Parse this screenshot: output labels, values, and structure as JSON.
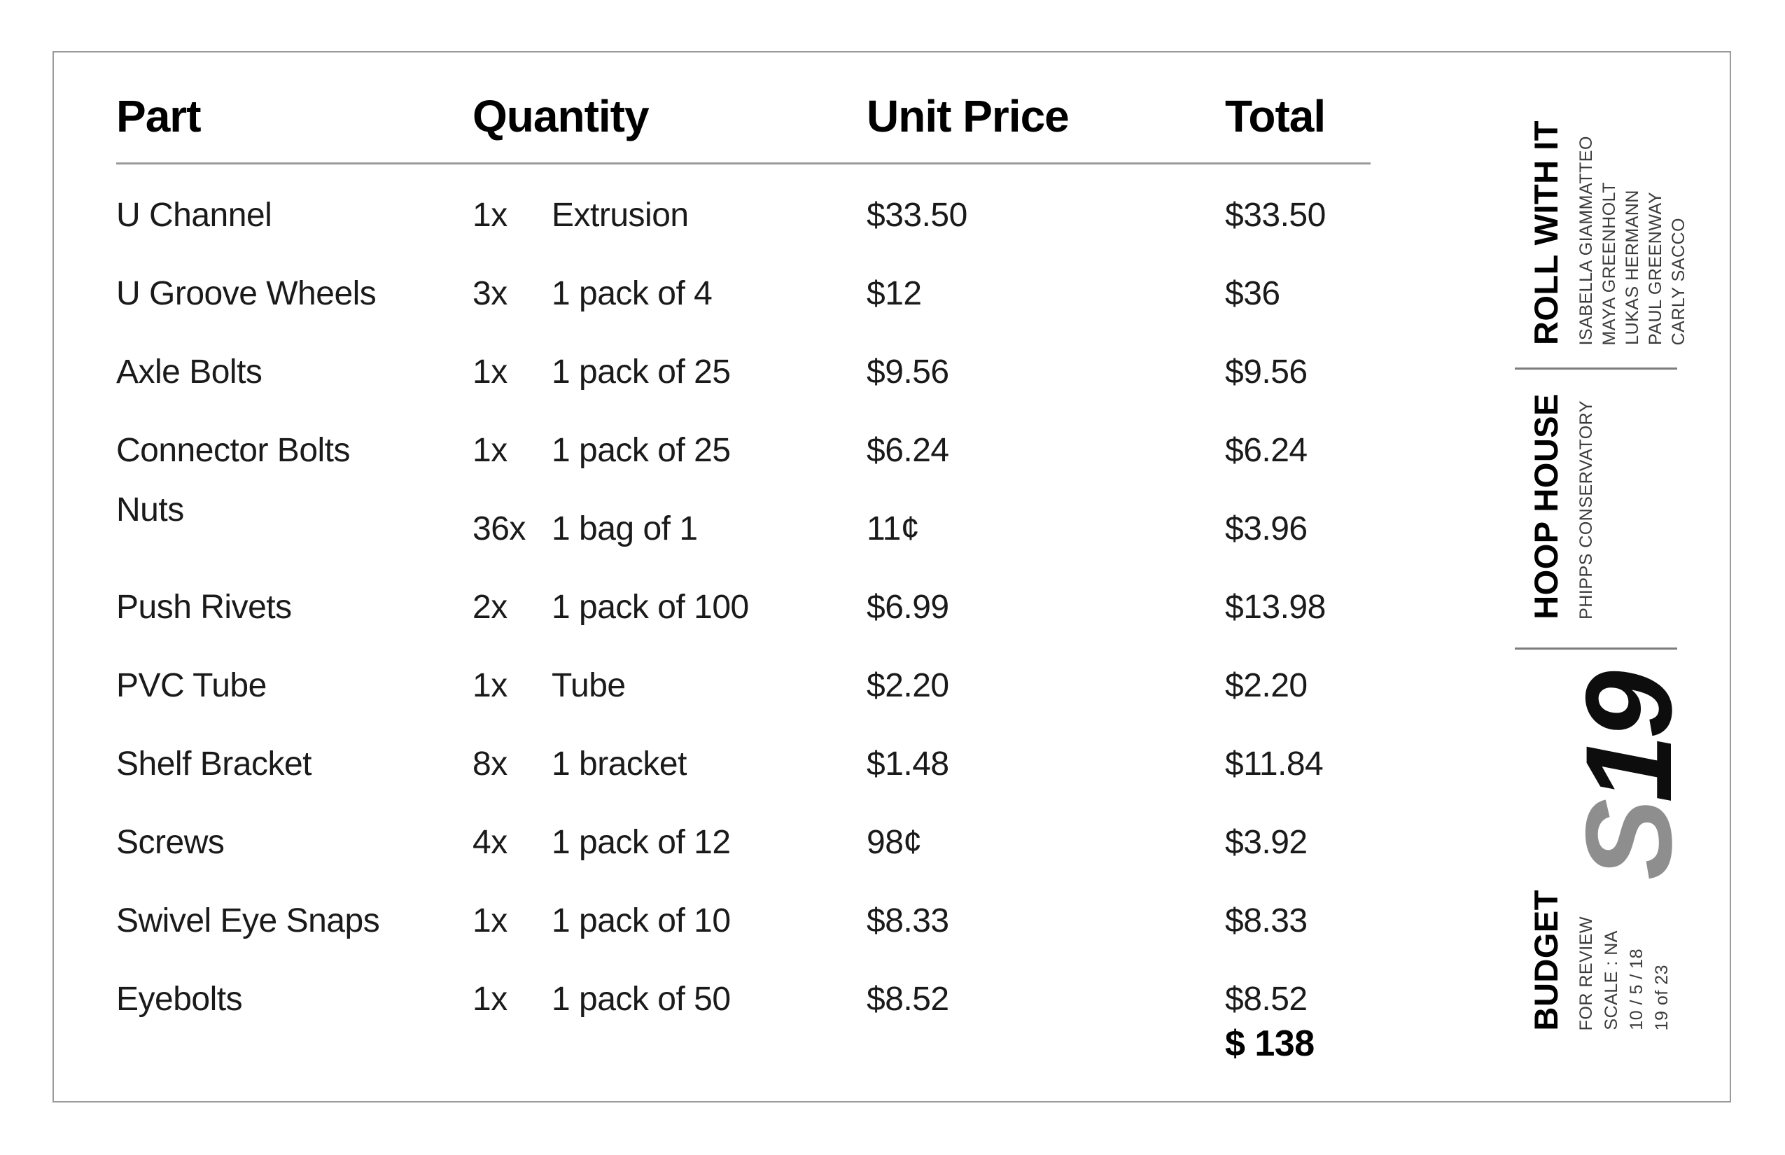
{
  "table": {
    "headers": {
      "part": "Part",
      "quantity": "Quantity",
      "unit_price": "Unit Price",
      "total": "Total"
    },
    "rows": [
      {
        "part": "U Channel",
        "qty": "1x",
        "pack": "Extrusion",
        "unit_price": "$33.50",
        "total": "$33.50"
      },
      {
        "part": "U Groove Wheels",
        "qty": "3x",
        "pack": "1 pack of 4",
        "unit_price": "$12",
        "total": "$36"
      },
      {
        "part": "Axle Bolts",
        "qty": "1x",
        "pack": "1 pack of 25",
        "unit_price": "$9.56",
        "total": "$9.56"
      },
      {
        "part": "Connector Bolts",
        "qty": "1x",
        "pack": "1 pack of 25",
        "unit_price": "$6.24",
        "total": "$6.24"
      },
      {
        "part": "Nuts",
        "qty": "36x",
        "pack": "1 bag of 1",
        "unit_price": "11¢",
        "total": "$3.96"
      },
      {
        "part": "Push Rivets",
        "qty": "2x",
        "pack": "1 pack of 100",
        "unit_price": "$6.99",
        "total": "$13.98"
      },
      {
        "part": "PVC Tube",
        "qty": "1x",
        "pack": "Tube",
        "unit_price": "$2.20",
        "total": "$2.20"
      },
      {
        "part": "Shelf Bracket",
        "qty": "8x",
        "pack": "1 bracket",
        "unit_price": "$1.48",
        "total": "$11.84"
      },
      {
        "part": "Screws",
        "qty": "4x",
        "pack": "1 pack of 12",
        "unit_price": "98¢",
        "total": "$3.92"
      },
      {
        "part": "Swivel Eye Snaps",
        "qty": "1x",
        "pack": "1 pack of 10",
        "unit_price": "$8.33",
        "total": "$8.33"
      },
      {
        "part": "Eyebolts",
        "qty": "1x",
        "pack": "1 pack of 50",
        "unit_price": "$8.52",
        "total": "$8.52"
      }
    ],
    "grand_total": "$ 138"
  },
  "titleblock": {
    "project": {
      "title": "ROLL WITH IT",
      "team": [
        "ISABELLA GIAMMATTEO",
        "MAYA GREENHOLT",
        "LUKAS HERMANN",
        "PAUL GREENWAY",
        "CARLY SACCO"
      ]
    },
    "site": {
      "title": "HOOP HOUSE",
      "subtitle": "PHIPPS CONSERVATORY"
    },
    "sheet_code": {
      "prefix": "S",
      "number": "19"
    },
    "sheet": {
      "title": "BUDGET",
      "meta": [
        "FOR REVIEW",
        "SCALE : NA",
        "10 / 5 / 18",
        "19 of 23"
      ]
    }
  },
  "colors": {
    "sheet_prefix_gray": "#8e8e8e",
    "divider_gray": "#7d7d7d",
    "border_gray": "#9a9a9a"
  }
}
